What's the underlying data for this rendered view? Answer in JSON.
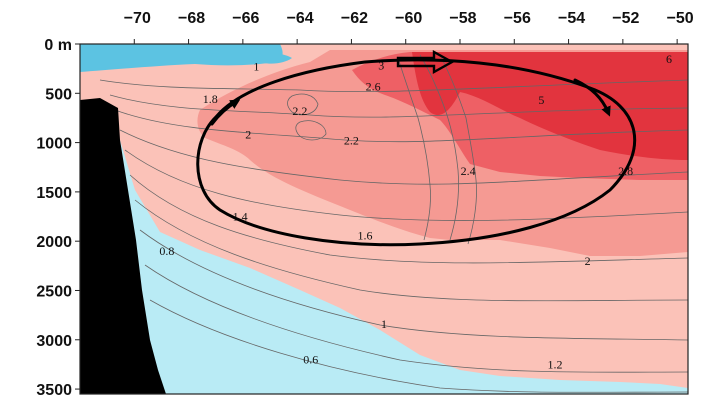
{
  "chart_data": {
    "type": "heatmap",
    "title": "",
    "xlabel": "",
    "ylabel": "",
    "x_ticks": [
      -70,
      -68,
      -66,
      -64,
      -62,
      -60,
      -58,
      -56,
      -54,
      -52,
      -50
    ],
    "x_tick_labels": [
      "−70",
      "−68",
      "−66",
      "−64",
      "−62",
      "−60",
      "−58",
      "−56",
      "−54",
      "−52",
      "−50"
    ],
    "xlim": [
      -72,
      -49.6
    ],
    "y_ticks": [
      0,
      500,
      1000,
      1500,
      2000,
      2500,
      3000,
      3500
    ],
    "y_tick_labels": [
      "0 m",
      "500",
      "1000",
      "1500",
      "2000",
      "2500",
      "3000",
      "3500"
    ],
    "ylim": [
      0,
      3550
    ],
    "contour_labels": [
      {
        "text": "1",
        "x": -65.5,
        "y": 230
      },
      {
        "text": "3",
        "x": -60.9,
        "y": 220
      },
      {
        "text": "6",
        "x": -50.3,
        "y": 150
      },
      {
        "text": "2.6",
        "x": -61.2,
        "y": 430
      },
      {
        "text": "1.8",
        "x": -67.2,
        "y": 560
      },
      {
        "text": "5",
        "x": -55.0,
        "y": 570
      },
      {
        "text": "2.2",
        "x": -63.9,
        "y": 680
      },
      {
        "text": "2",
        "x": -65.8,
        "y": 920
      },
      {
        "text": "2.2",
        "x": -62.0,
        "y": 980
      },
      {
        "text": "2.4",
        "x": -57.7,
        "y": 1290
      },
      {
        "text": "2.8",
        "x": -51.9,
        "y": 1290
      },
      {
        "text": "1.4",
        "x": -66.1,
        "y": 1750
      },
      {
        "text": "1.6",
        "x": -61.5,
        "y": 1940
      },
      {
        "text": "0.8",
        "x": -68.8,
        "y": 2100
      },
      {
        "text": "2",
        "x": -53.3,
        "y": 2200
      },
      {
        "text": "1",
        "x": -60.8,
        "y": 2840
      },
      {
        "text": "0.6",
        "x": -63.5,
        "y": 3200
      },
      {
        "text": "1.2",
        "x": -54.5,
        "y": 3250
      }
    ],
    "colors": {
      "deep_red": "#e2343e",
      "red": "#ee6065",
      "salmon": "#f59a93",
      "light_pink": "#fbc2b8",
      "light_blue": "#b9ebf5",
      "cold_blue": "#5cc3e2",
      "topography": "#000000",
      "contour_line": "#666666",
      "circulation_arrow": "#000000"
    }
  }
}
